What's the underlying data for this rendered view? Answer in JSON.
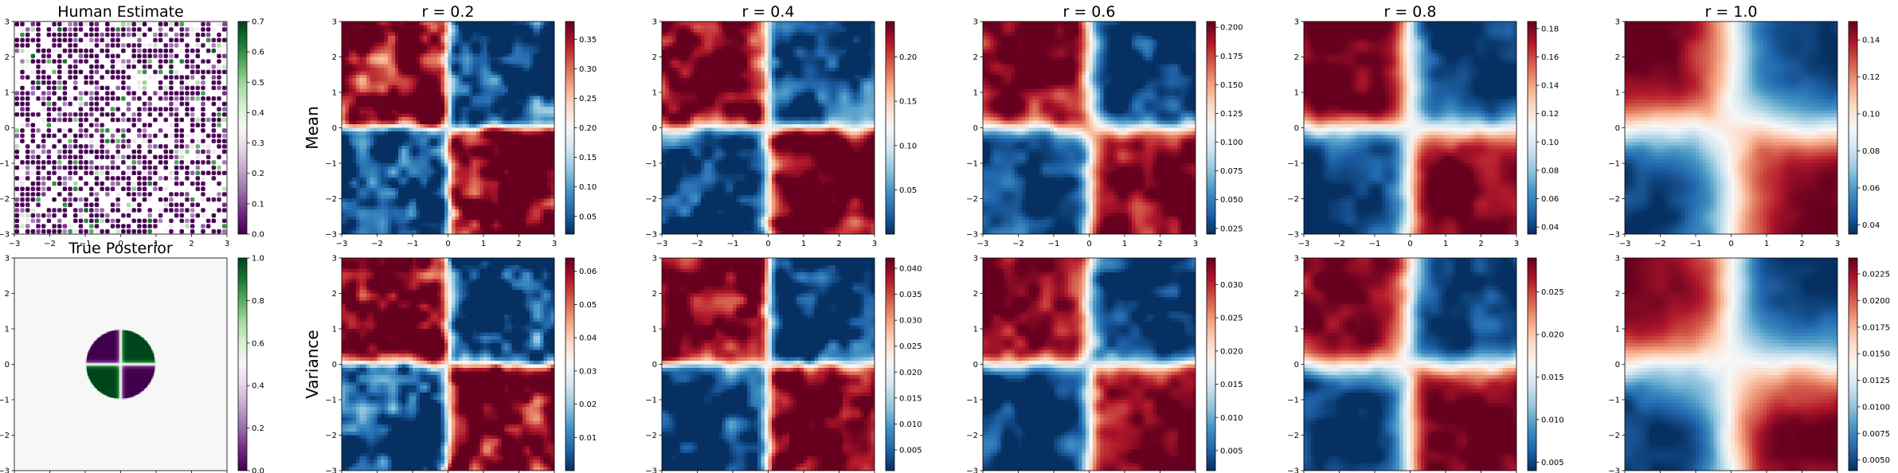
{
  "chart_data": {
    "type": "heatmap",
    "layout": "2 rows x 6 columns of heatmap panels, each with its own colorbar",
    "xlim": [
      -3,
      3
    ],
    "ylim": [
      -3,
      3
    ],
    "x_ticks": [
      "−3",
      "−2",
      "−1",
      "0",
      "1",
      "2",
      "3"
    ],
    "y_ticks": [
      "−3",
      "−2",
      "−1",
      "0",
      "1",
      "2",
      "3"
    ],
    "row_labels": [
      "",
      "Mean",
      "Variance"
    ],
    "panels": [
      {
        "id": "human-estimate",
        "row": 0,
        "col": 0,
        "title": "Human Estimate",
        "colormap": "PRGn",
        "field": "scattered-human-samples",
        "vmin": 0.0,
        "vmax": 0.7,
        "colorbar_ticks": [
          "0.0",
          "0.1",
          "0.2",
          "0.3",
          "0.4",
          "0.5",
          "0.6",
          "0.7"
        ],
        "colorbar_values": [
          0.0,
          0.1,
          0.2,
          0.3,
          0.4,
          0.5,
          0.6,
          0.7
        ]
      },
      {
        "id": "r02-mean",
        "row": 0,
        "col": 1,
        "title": "r = 0.2",
        "colormap": "RdBu_r",
        "field": "quadrant",
        "smoothness": 0.2,
        "vmin": 0.02,
        "vmax": 0.38,
        "colorbar_ticks": [
          "0.05",
          "0.10",
          "0.15",
          "0.20",
          "0.25",
          "0.30",
          "0.35"
        ],
        "colorbar_values": [
          0.05,
          0.1,
          0.15,
          0.2,
          0.25,
          0.3,
          0.35
        ]
      },
      {
        "id": "r04-mean",
        "row": 0,
        "col": 2,
        "title": "r = 0.4",
        "colormap": "RdBu_r",
        "field": "quadrant",
        "smoothness": 0.4,
        "vmin": 0.0,
        "vmax": 0.24,
        "colorbar_ticks": [
          "0.05",
          "0.10",
          "0.15",
          "0.20"
        ],
        "colorbar_values": [
          0.05,
          0.1,
          0.15,
          0.2
        ]
      },
      {
        "id": "r06-mean",
        "row": 0,
        "col": 3,
        "title": "r = 0.6",
        "colormap": "RdBu_r",
        "field": "quadrant",
        "smoothness": 0.6,
        "vmin": 0.02,
        "vmax": 0.205,
        "colorbar_ticks": [
          "0.025",
          "0.050",
          "0.075",
          "0.100",
          "0.125",
          "0.150",
          "0.175",
          "0.200"
        ],
        "colorbar_values": [
          0.025,
          0.05,
          0.075,
          0.1,
          0.125,
          0.15,
          0.175,
          0.2
        ]
      },
      {
        "id": "r08-mean",
        "row": 0,
        "col": 4,
        "title": "r = 0.8",
        "colormap": "RdBu_r",
        "field": "quadrant",
        "smoothness": 0.8,
        "vmin": 0.035,
        "vmax": 0.185,
        "colorbar_ticks": [
          "0.04",
          "0.06",
          "0.08",
          "0.10",
          "0.12",
          "0.14",
          "0.16",
          "0.18"
        ],
        "colorbar_values": [
          0.04,
          0.06,
          0.08,
          0.1,
          0.12,
          0.14,
          0.16,
          0.18
        ]
      },
      {
        "id": "r10-mean",
        "row": 0,
        "col": 5,
        "title": "r = 1.0",
        "colormap": "RdBu_r",
        "field": "quadrant",
        "smoothness": 1.0,
        "vmin": 0.035,
        "vmax": 0.15,
        "colorbar_ticks": [
          "0.04",
          "0.06",
          "0.08",
          "0.10",
          "0.12",
          "0.14"
        ],
        "colorbar_values": [
          0.04,
          0.06,
          0.08,
          0.1,
          0.12,
          0.14
        ]
      },
      {
        "id": "true-posterior",
        "row": 1,
        "col": 0,
        "title": "True Posterior",
        "colormap": "PRGn",
        "field": "disk-quadrants",
        "vmin": 0.0,
        "vmax": 1.0,
        "colorbar_ticks": [
          "0.0",
          "0.2",
          "0.4",
          "0.6",
          "0.8",
          "1.0"
        ],
        "colorbar_values": [
          0.0,
          0.2,
          0.4,
          0.6,
          0.8,
          1.0
        ]
      },
      {
        "id": "r02-var",
        "row": 1,
        "col": 1,
        "title": "",
        "colormap": "RdBu_r",
        "field": "quadrant",
        "smoothness": 0.2,
        "vmin": 0.0,
        "vmax": 0.064,
        "colorbar_ticks": [
          "0.01",
          "0.02",
          "0.03",
          "0.04",
          "0.05",
          "0.06"
        ],
        "colorbar_values": [
          0.01,
          0.02,
          0.03,
          0.04,
          0.05,
          0.06
        ]
      },
      {
        "id": "r04-var",
        "row": 1,
        "col": 2,
        "title": "",
        "colormap": "RdBu_r",
        "field": "quadrant",
        "smoothness": 0.4,
        "vmin": 0.001,
        "vmax": 0.042,
        "colorbar_ticks": [
          "0.005",
          "0.010",
          "0.015",
          "0.020",
          "0.025",
          "0.030",
          "0.035",
          "0.040"
        ],
        "colorbar_values": [
          0.005,
          0.01,
          0.015,
          0.02,
          0.025,
          0.03,
          0.035,
          0.04
        ]
      },
      {
        "id": "r06-var",
        "row": 1,
        "col": 3,
        "title": "",
        "colormap": "RdBu_r",
        "field": "quadrant",
        "smoothness": 0.6,
        "vmin": 0.002,
        "vmax": 0.034,
        "colorbar_ticks": [
          "0.005",
          "0.010",
          "0.015",
          "0.020",
          "0.025",
          "0.030"
        ],
        "colorbar_values": [
          0.005,
          0.01,
          0.015,
          0.02,
          0.025,
          0.03
        ]
      },
      {
        "id": "r08-var",
        "row": 1,
        "col": 4,
        "title": "",
        "colormap": "RdBu_r",
        "field": "quadrant",
        "smoothness": 0.8,
        "vmin": 0.004,
        "vmax": 0.029,
        "colorbar_ticks": [
          "0.005",
          "0.010",
          "0.015",
          "0.020",
          "0.025"
        ],
        "colorbar_values": [
          0.005,
          0.01,
          0.015,
          0.02,
          0.025
        ]
      },
      {
        "id": "r10-var",
        "row": 1,
        "col": 5,
        "title": "",
        "colormap": "RdBu_r",
        "field": "quadrant",
        "smoothness": 1.0,
        "vmin": 0.004,
        "vmax": 0.024,
        "colorbar_ticks": [
          "0.0050",
          "0.0075",
          "0.0100",
          "0.0125",
          "0.0150",
          "0.0175",
          "0.0200",
          "0.0225"
        ],
        "colorbar_values": [
          0.005,
          0.0075,
          0.01,
          0.0125,
          0.015,
          0.0175,
          0.02,
          0.0225
        ]
      }
    ]
  }
}
